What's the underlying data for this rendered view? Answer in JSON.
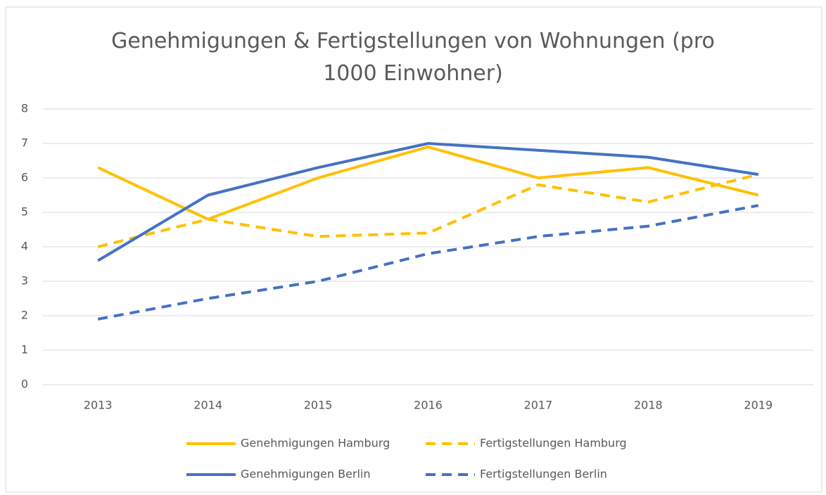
{
  "chart_data": {
    "type": "line",
    "title": "Genehmigungen & Fertigstellungen von Wohnungen (pro 1000 Einwohner)",
    "categories": [
      "2013",
      "2014",
      "2015",
      "2016",
      "2017",
      "2018",
      "2019"
    ],
    "series": [
      {
        "name": "Genehmigungen Hamburg",
        "color": "#FFC000",
        "line_style": "solid",
        "values": [
          6.3,
          4.8,
          6.0,
          6.9,
          6.0,
          6.3,
          5.5
        ]
      },
      {
        "name": "Fertigstellungen Hamburg",
        "color": "#FFC000",
        "line_style": "dashed",
        "values": [
          4.0,
          4.8,
          4.3,
          4.4,
          5.8,
          5.3,
          6.1
        ]
      },
      {
        "name": "Genehmigungen Berlin",
        "color": "#4472C4",
        "line_style": "solid",
        "values": [
          3.6,
          5.5,
          6.3,
          7.0,
          6.8,
          6.6,
          6.1
        ]
      },
      {
        "name": "Fertigstellungen Berlin",
        "color": "#4472C4",
        "line_style": "dashed",
        "values": [
          1.9,
          2.5,
          3.0,
          3.8,
          4.3,
          4.6,
          5.2
        ]
      }
    ],
    "ylim": [
      0,
      8
    ],
    "yticks": [
      0,
      1,
      2,
      3,
      4,
      5,
      6,
      7,
      8
    ],
    "grid": true,
    "legend": "bottom"
  }
}
